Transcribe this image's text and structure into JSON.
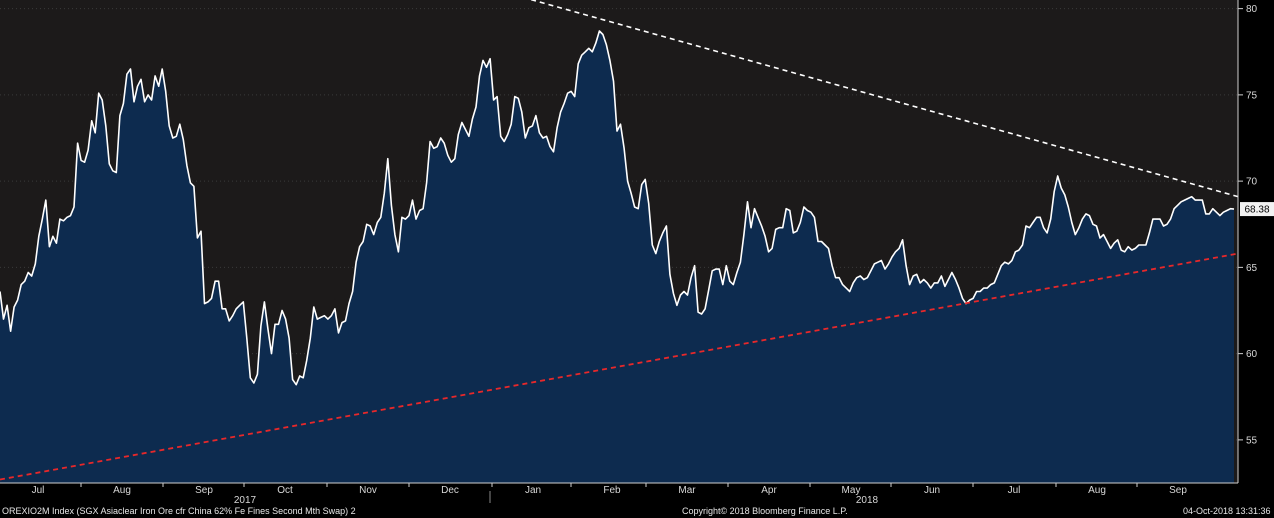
{
  "chart_data": {
    "type": "line",
    "ylim": [
      52.5,
      80.5
    ],
    "y_ticks": [
      55,
      60,
      65,
      70,
      75,
      80
    ],
    "x_month_labels": [
      "Jul",
      "Aug",
      "Sep",
      "Oct",
      "Nov",
      "Dec",
      "Jan",
      "Feb",
      "Mar",
      "Apr",
      "May",
      "Jun",
      "Jul",
      "Aug",
      "Sep"
    ],
    "year_labels": [
      "2017",
      "2018"
    ],
    "last_value_label": "68.38",
    "last_value": 68.38,
    "grid": true,
    "colors": {
      "line": "#ffffff",
      "fill": "#0d2b4f",
      "plot_bg": "#1c1a1a",
      "upper_trend": "#ffffff",
      "lower_trend": "#e8282a",
      "axis": "#cfcfcf"
    },
    "series": [
      {
        "values": [
          63.6,
          62.0,
          62.8,
          61.3,
          62.7,
          63.1,
          64.0,
          64.2,
          64.7,
          64.5,
          65.2,
          66.8,
          67.8,
          68.9,
          66.2,
          66.8,
          66.4,
          67.8,
          67.7,
          67.9,
          68.0,
          68.5,
          72.2,
          71.2,
          71.1,
          71.8,
          73.5,
          72.8,
          75.1,
          74.7,
          73.2,
          71.0,
          70.6,
          70.5,
          73.8,
          74.5,
          76.2,
          76.5,
          74.6,
          75.5,
          75.9,
          74.6,
          75.0,
          74.7,
          76.1,
          75.5,
          76.5,
          75.2,
          73.2,
          72.5,
          72.6,
          73.3,
          72.4,
          70.9,
          69.9,
          69.7,
          66.7,
          67.1,
          62.9,
          63.0,
          63.2,
          64.2,
          64.2,
          62.6,
          62.6,
          61.9,
          62.2,
          62.6,
          62.8,
          63.0,
          60.9,
          58.6,
          58.3,
          58.8,
          61.6,
          63.0,
          61.4,
          60.0,
          61.7,
          61.7,
          62.5,
          62.0,
          60.9,
          58.5,
          58.2,
          58.7,
          58.6,
          59.6,
          60.9,
          62.7,
          62.0,
          62.1,
          62.2,
          62.0,
          62.2,
          62.6,
          61.2,
          61.8,
          61.9,
          62.9,
          63.6,
          65.3,
          66.2,
          66.5,
          67.5,
          67.4,
          66.9,
          67.6,
          67.9,
          69.3,
          71.3,
          68.6,
          66.9,
          65.9,
          67.9,
          67.8,
          68.0,
          68.9,
          67.8,
          68.3,
          68.4,
          69.9,
          72.3,
          71.9,
          72.0,
          72.5,
          72.2,
          71.5,
          71.1,
          71.3,
          72.7,
          73.4,
          73.0,
          72.6,
          73.6,
          74.3,
          76.1,
          77.0,
          76.6,
          77.1,
          74.7,
          74.9,
          72.6,
          72.3,
          72.7,
          73.3,
          74.9,
          74.8,
          74.0,
          72.5,
          73.1,
          73.2,
          73.8,
          72.8,
          72.5,
          72.6,
          72.0,
          71.7,
          73.1,
          74.0,
          74.5,
          75.1,
          75.2,
          74.9,
          76.8,
          77.3,
          77.5,
          77.7,
          77.5,
          78.0,
          78.7,
          78.5,
          77.9,
          77.0,
          75.8,
          72.9,
          73.3,
          71.9,
          70.0,
          69.3,
          68.5,
          68.4,
          69.8,
          70.1,
          68.7,
          66.3,
          65.8,
          66.5,
          67.0,
          67.4,
          64.6,
          63.5,
          62.8,
          63.4,
          63.6,
          63.4,
          64.4,
          65.1,
          62.4,
          62.3,
          62.6,
          63.7,
          64.8,
          64.9,
          64.9,
          64.0,
          65.1,
          64.2,
          64.0,
          64.7,
          65.3,
          66.9,
          68.8,
          67.3,
          68.4,
          67.9,
          67.4,
          66.8,
          65.9,
          66.1,
          67.2,
          67.3,
          67.3,
          68.4,
          68.3,
          67.0,
          67.1,
          67.6,
          68.5,
          68.3,
          68.2,
          67.9,
          66.5,
          66.5,
          66.3,
          66.1,
          65.1,
          64.4,
          64.4,
          64.0,
          63.8,
          63.6,
          64.1,
          64.4,
          64.5,
          64.3,
          64.4,
          64.8,
          65.2,
          65.3,
          65.4,
          64.9,
          65.2,
          65.6,
          65.9,
          66.1,
          66.6,
          65.1,
          64.0,
          64.5,
          64.6,
          64.1,
          64.3,
          64.1,
          63.8,
          64.1,
          64.1,
          64.5,
          63.9,
          64.3,
          64.7,
          64.3,
          63.8,
          63.2,
          62.9,
          63.1,
          63.2,
          63.6,
          63.6,
          63.8,
          63.8,
          64.0,
          64.1,
          64.6,
          65.1,
          65.3,
          65.2,
          65.4,
          65.9,
          66.0,
          66.3,
          67.4,
          67.3,
          67.6,
          67.9,
          67.9,
          67.3,
          67.0,
          67.8,
          69.4,
          70.3,
          69.6,
          69.2,
          68.5,
          67.6,
          66.9,
          67.3,
          67.8,
          68.1,
          68.0,
          67.5,
          67.4,
          66.7,
          66.9,
          66.5,
          66.1,
          66.4,
          66.6,
          66.0,
          65.9,
          66.2,
          66.0,
          66.1,
          66.3,
          66.3,
          66.3,
          67.0,
          67.8,
          67.8,
          67.8,
          67.4,
          67.5,
          67.8,
          68.4,
          68.6,
          68.8,
          68.9,
          69.0,
          69.1,
          68.9,
          68.9,
          68.9,
          68.1,
          68.1,
          68.4,
          68.2,
          68.0,
          68.2,
          68.3,
          68.4,
          68.38
        ]
      }
    ],
    "trend_lines": [
      {
        "from": [
          0.415,
          80.8
        ],
        "to": [
          1.0,
          69.1
        ]
      },
      {
        "from": [
          0.0,
          52.7
        ],
        "to": [
          1.0,
          65.8
        ]
      }
    ]
  },
  "footer": {
    "index_title": "OREXIO2M Index (SGX Asiaclear Iron Ore cfr China 62% Fe Fines Second Mth Swap) 2",
    "copyright": "Copyright© 2018 Bloomberg Finance L.P.",
    "timestamp": "04-Oct-2018 13:31:36"
  }
}
